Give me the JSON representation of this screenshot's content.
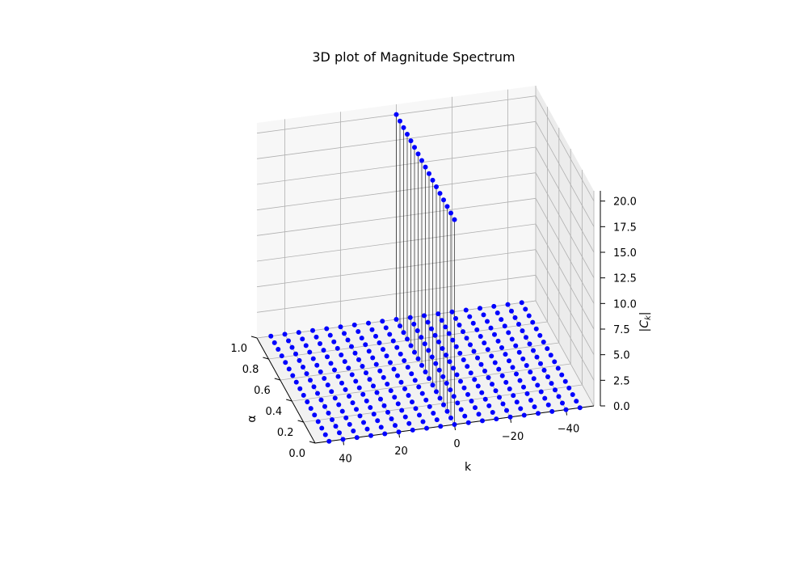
{
  "chart_data": {
    "type": "scatter",
    "subtype": "3d-stem",
    "title": "3D plot of Magnitude Spectrum",
    "xlabel": "k",
    "ylabel": "α",
    "zlabel": "|C_k|",
    "xlim": [
      -50,
      50
    ],
    "ylim": [
      0,
      1
    ],
    "zlim": [
      0,
      21
    ],
    "xticks": [
      "40",
      "20",
      "0",
      "−20",
      "−40"
    ],
    "xtick_values": [
      40,
      20,
      0,
      -20,
      -40
    ],
    "yticks": [
      "0.0",
      "0.2",
      "0.4",
      "0.6",
      "0.8",
      "1.0"
    ],
    "ytick_values": [
      0,
      0.2,
      0.4,
      0.6,
      0.8,
      1.0
    ],
    "zticks": [
      "0.0",
      "2.5",
      "5.0",
      "7.5",
      "10.0",
      "12.5",
      "15.0",
      "17.5",
      "20.0"
    ],
    "ztick_values": [
      0,
      2.5,
      5,
      7.5,
      10,
      12.5,
      15,
      17.5,
      20
    ],
    "k_values": [
      -45,
      -40,
      -35,
      -30,
      -25,
      -20,
      -15,
      -10,
      -5,
      0,
      5,
      10,
      15,
      20,
      25,
      30,
      35,
      40,
      45
    ],
    "alpha_values": [
      0.0,
      0.0625,
      0.125,
      0.1875,
      0.25,
      0.3125,
      0.375,
      0.4375,
      0.5,
      0.5625,
      0.625,
      0.6875,
      0.75,
      0.8125,
      0.875,
      0.9375,
      1.0
    ],
    "peak": {
      "k": 0,
      "value": 20
    },
    "series_color": "#0000ff",
    "stem_color": "#000000",
    "grid": true
  }
}
